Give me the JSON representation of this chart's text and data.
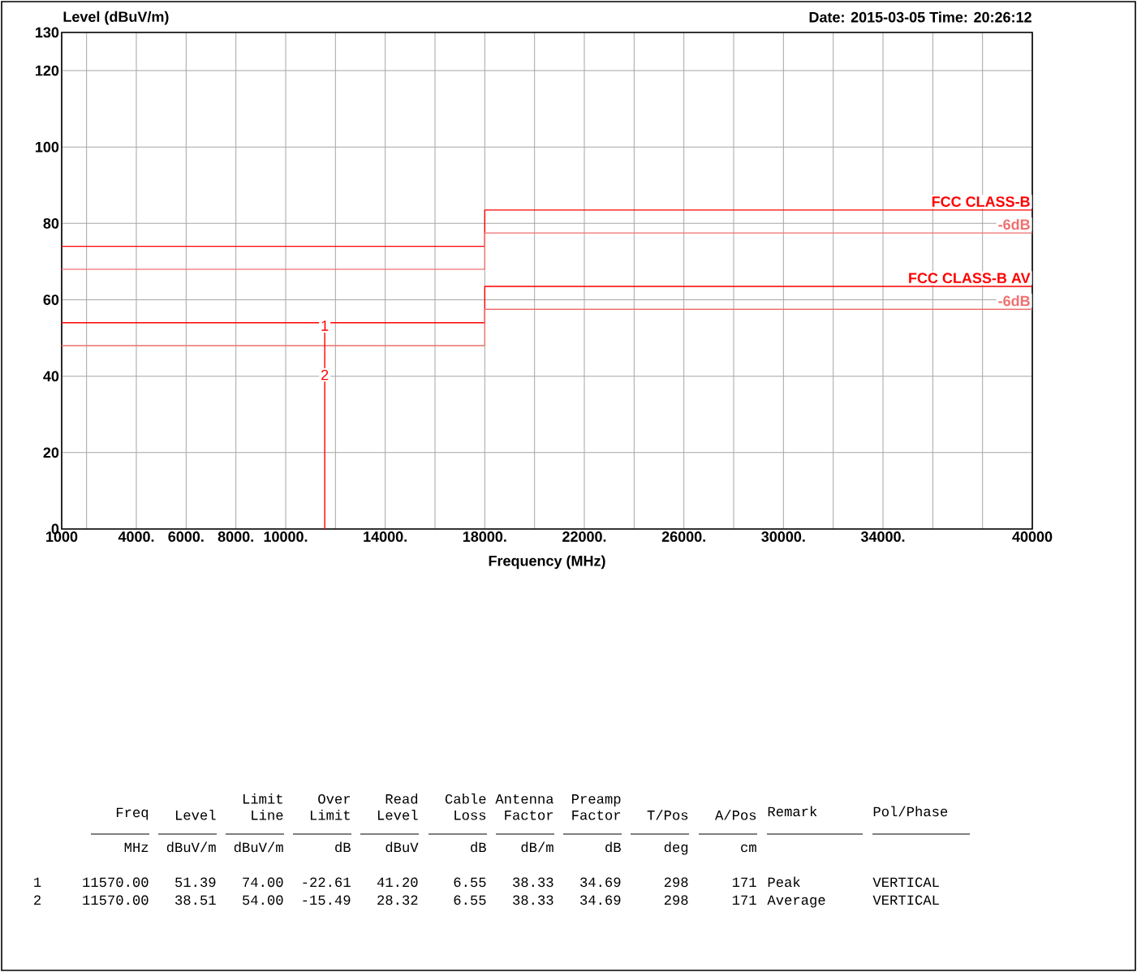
{
  "chart_data": {
    "type": "step",
    "ylabel": "Level (dBuV/m)",
    "xlabel": "Frequency (MHz)",
    "xlim": [
      1000,
      40000
    ],
    "ylim": [
      0,
      130
    ],
    "xticks": [
      {
        "value": 1000,
        "label": "1000"
      },
      {
        "value": 2000,
        "label": null
      },
      {
        "value": 4000,
        "label": "4000."
      },
      {
        "value": 6000,
        "label": "6000."
      },
      {
        "value": 8000,
        "label": "8000."
      },
      {
        "value": 10000,
        "label": "10000."
      },
      {
        "value": 12000,
        "label": null
      },
      {
        "value": 14000,
        "label": "14000."
      },
      {
        "value": 16000,
        "label": null
      },
      {
        "value": 18000,
        "label": "18000."
      },
      {
        "value": 20000,
        "label": null
      },
      {
        "value": 22000,
        "label": "22000."
      },
      {
        "value": 24000,
        "label": null
      },
      {
        "value": 26000,
        "label": "26000."
      },
      {
        "value": 28000,
        "label": null
      },
      {
        "value": 30000,
        "label": "30000."
      },
      {
        "value": 32000,
        "label": null
      },
      {
        "value": 34000,
        "label": "34000."
      },
      {
        "value": 36000,
        "label": null
      },
      {
        "value": 38000,
        "label": null
      },
      {
        "value": 40000,
        "label": "40000"
      }
    ],
    "yticks": [
      0,
      20,
      40,
      60,
      80,
      100,
      120,
      130
    ],
    "grid": true,
    "marker": "none",
    "series": [
      {
        "name": "FCC CLASS-B",
        "color": "#ff0000",
        "x": [
          1000,
          18000,
          40000
        ],
        "values": [
          74,
          83.5,
          83.5
        ]
      },
      {
        "name": "-6dB",
        "color": "#f07070",
        "x": [
          1000,
          18000,
          40000
        ],
        "values": [
          68,
          77.5,
          77.5
        ]
      },
      {
        "name": "FCC CLASS-B  AV",
        "color": "#ff0000",
        "x": [
          1000,
          18000,
          40000
        ],
        "values": [
          54,
          63.5,
          63.5
        ]
      },
      {
        "name": "-6dB",
        "color": "#f07070",
        "x": [
          1000,
          18000,
          40000
        ],
        "values": [
          48,
          57.5,
          57.5
        ]
      },
      {
        "type": "line",
        "color": "#ff0000",
        "x": [
          11570,
          11570
        ],
        "values": [
          0,
          51.39
        ]
      }
    ],
    "annotations": [
      {
        "text": "1",
        "x": 11570,
        "y": 51.39
      },
      {
        "text": "2",
        "x": 11570,
        "y": 38.51
      },
      "Date: 2015-03-05  Time: 20:26:12",
      "Freq",
      "Level",
      "Limit Line",
      "Over Limit",
      "Read Level",
      "Cable Loss",
      "Antenna Factor",
      "Preamp Factor",
      "T/Pos",
      "A/Pos",
      "Remark",
      "Pol/Phase",
      "MHz",
      "dBuV/m",
      "dBuV/m",
      "dB",
      "dBuV",
      "dB",
      "dB/m",
      "dB",
      "deg",
      "cm",
      "1",
      "11570.00",
      "51.39",
      "74.00",
      "-22.61",
      "41.20",
      "6.55",
      "38.33",
      "34.69",
      "298",
      "171",
      "Peak",
      "VERTICAL",
      "2",
      "11570.00",
      "38.51",
      "54.00",
      "-15.49",
      "28.32",
      "6.55",
      "38.33",
      "34.69",
      "298",
      "171",
      "Average",
      "VERTICAL"
    ]
  }
}
